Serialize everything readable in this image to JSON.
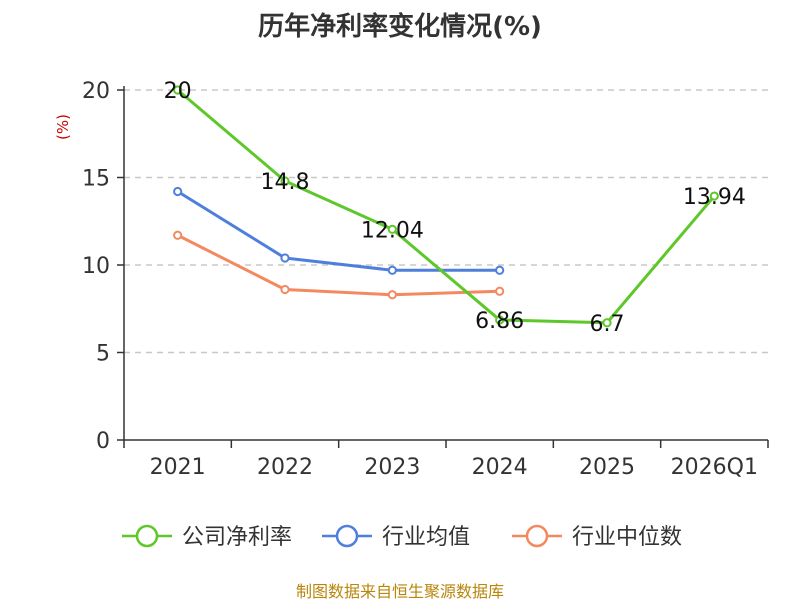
{
  "chart_data": {
    "type": "line",
    "title": "历年净利率变化情况(%)",
    "ylabel": "(%)",
    "xlabel": "",
    "categories": [
      "2021",
      "2022",
      "2023",
      "2024",
      "2025",
      "2026Q1"
    ],
    "ylim": [
      0,
      20
    ],
    "yticks": [
      0,
      5,
      10,
      15,
      20
    ],
    "grid": true,
    "legend_position": "bottom",
    "series": [
      {
        "name": "公司净利率",
        "color": "#5ec72a",
        "values": [
          20,
          14.8,
          12.04,
          6.86,
          6.7,
          13.94
        ],
        "labels": [
          "20",
          "14.8",
          "12.04",
          "6.86",
          "6.7",
          "13.94"
        ]
      },
      {
        "name": "行业均值",
        "color": "#4f7fdc",
        "values": [
          14.2,
          10.4,
          9.7,
          9.7,
          null,
          null
        ]
      },
      {
        "name": "行业中位数",
        "color": "#f4895f",
        "values": [
          11.7,
          8.6,
          8.3,
          8.5,
          null,
          null
        ]
      }
    ]
  },
  "source_note": "制图数据来自恒生聚源数据库"
}
